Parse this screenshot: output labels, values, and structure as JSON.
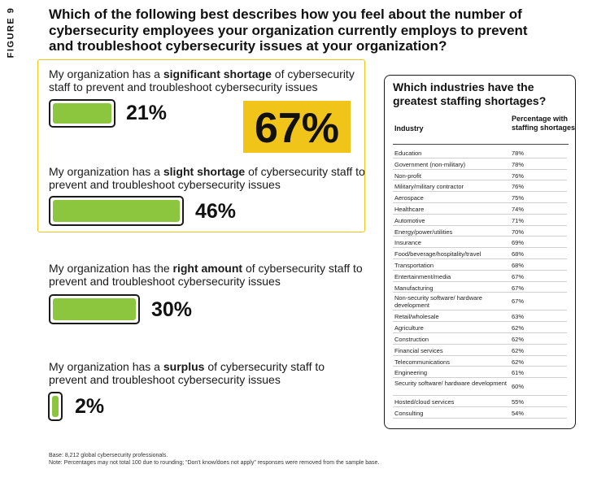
{
  "figure_label": "FIGURE 9",
  "title": "Which of the following best describes how you feel about the number of cybersecurity employees your organization currently employs to prevent and troubleshoot cybersecurity issues at your organization?",
  "chart_data": [
    {
      "type": "bar",
      "title": "Which of the following best describes how you feel about the number of cybersecurity employees your organization currently employs to prevent and troubleshoot cybersecurity issues at your organization?",
      "categories": [
        "significant shortage",
        "slight shortage",
        "right amount",
        "surplus"
      ],
      "values": [
        21,
        46,
        30,
        2
      ],
      "labels": [
        "21%",
        "46%",
        "30%",
        "2%"
      ],
      "ylim": [
        0,
        100
      ],
      "highlight_total_label": "67%",
      "highlight_total": 67,
      "options": [
        {
          "prefix": "My organization has a ",
          "bold": "significant shortage",
          "suffix": " of cybersecurity staff to prevent and troubleshoot cybersecurity issues"
        },
        {
          "prefix": "My organization has a ",
          "bold": "slight shortage",
          "suffix": " of cybersecurity staff to prevent and troubleshoot cybersecurity issues"
        },
        {
          "prefix": "My organization has the ",
          "bold": "right amount",
          "suffix": " of cybersecurity staff to prevent and troubleshoot cybersecurity issues"
        },
        {
          "prefix": "My organization has a ",
          "bold": "surplus",
          "suffix": " of cybersecurity staff to prevent and troubleshoot cybersecurity issues"
        }
      ]
    },
    {
      "type": "table",
      "title": "Which industries have the greatest staffing shortages?",
      "columns": [
        "Industry",
        "Percentage with staffing shortages"
      ],
      "rows": [
        [
          "Education",
          "78%"
        ],
        [
          "Government (non-military)",
          "78%"
        ],
        [
          "Non-profit",
          "76%"
        ],
        [
          "Military/military contractor",
          "76%"
        ],
        [
          "Aerospace",
          "75%"
        ],
        [
          "Healthcare",
          "74%"
        ],
        [
          "Automotive",
          "71%"
        ],
        [
          "Energy/power/utilities",
          "70%"
        ],
        [
          "Insurance",
          "69%"
        ],
        [
          "Food/beverage/hospitality/travel",
          "68%"
        ],
        [
          "Transportation",
          "68%"
        ],
        [
          "Entertainment/media",
          "67%"
        ],
        [
          "Manufacturing",
          "67%"
        ],
        [
          "Non-security software/ hardware development",
          "67%"
        ],
        [
          "Retail/wholesale",
          "63%"
        ],
        [
          "Agriculture",
          "62%"
        ],
        [
          "Construction",
          "62%"
        ],
        [
          "Financial services",
          "62%"
        ],
        [
          "Telecommunications",
          "62%"
        ],
        [
          "Engineering",
          "61%"
        ],
        [
          "Security software/ hardware development",
          "60%"
        ],
        [
          "Hosted/cloud services",
          "55%"
        ],
        [
          "Consulting",
          "54%"
        ]
      ]
    }
  ],
  "footnotes": {
    "base": "Base: 8,212 global cybersecurity professionals.",
    "note": "Note: Percentages may not total 100 due to rounding; “Don't know/does not apply” responses were removed from the sample base."
  },
  "colors": {
    "bar": "#8cc63f",
    "highlight": "#f0c419",
    "frame": "#1a1a1a"
  }
}
